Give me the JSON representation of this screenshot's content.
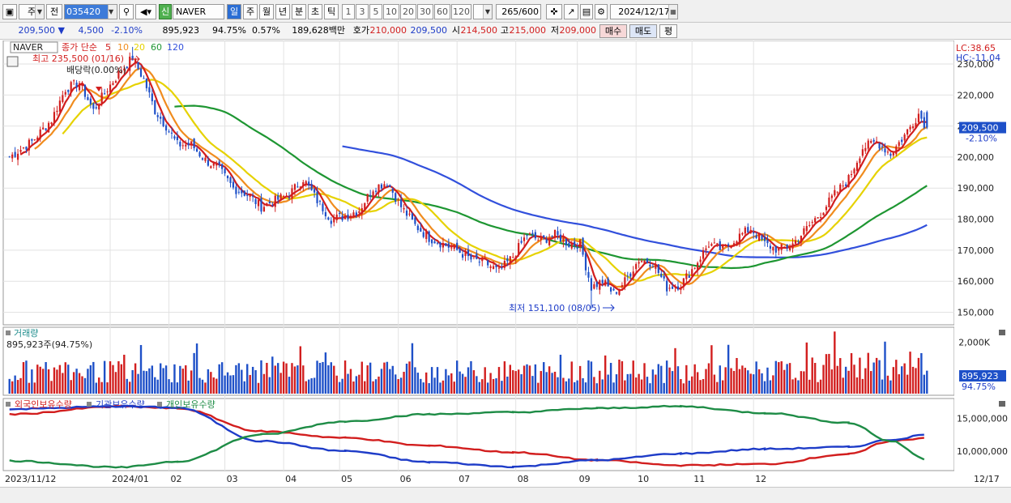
{
  "toolbar": {
    "market_type": "주",
    "all_label": "전",
    "stock_code": "035420",
    "signal_badge": "신",
    "stock_name": "NAVER",
    "periods": [
      "일",
      "주",
      "월",
      "년",
      "분",
      "초",
      "틱"
    ],
    "intervals": [
      "1",
      "3",
      "5",
      "10",
      "20",
      "30",
      "60",
      "120"
    ],
    "count": "265",
    "count_max": "/600",
    "date": "2024/12/17"
  },
  "quote": {
    "price": "209,500",
    "change_arrow": "▼",
    "change": "4,500",
    "change_pct": "-2.10%",
    "volume": "895,923",
    "vol_ratio": "94.75%",
    "turnover": "0.57%",
    "amount": "189,628백만",
    "bid_label": "호가",
    "ask": "210,000",
    "bid": "209,500",
    "open_label": "시",
    "open": "214,500",
    "high_label": "고",
    "high": "215,000",
    "low_label": "저",
    "low": "209,000",
    "buy_button": "매수",
    "sell_button": "매도",
    "eval_button": "평"
  },
  "legend": {
    "name": "NAVER",
    "type": "종가 단순",
    "ma": [
      {
        "label": "5",
        "color": "#d21e1e"
      },
      {
        "label": "10",
        "color": "#f08c1e"
      },
      {
        "label": "20",
        "color": "#e6d200"
      },
      {
        "label": "60",
        "color": "#1e9632"
      },
      {
        "label": "120",
        "color": "#3250dc"
      }
    ]
  },
  "annotations": {
    "high": "최고 235,500 (01/16)",
    "dividend": "배당락(0.00%)",
    "low": "최저 151,100 (08/05)",
    "lc": "LC:38.65",
    "hc": "HC:-11.04",
    "price_tag": "209,500",
    "price_tag_pct": "-2.10%"
  },
  "volume_panel": {
    "title": "거래량",
    "info": "895,923주(94.75%)",
    "axis_label": "2,000K",
    "tag": "895,923",
    "tag_pct": "94.75%"
  },
  "holdings_panel": {
    "legends": [
      {
        "label": "외국인보유수량",
        "color": "#d21e1e"
      },
      {
        "label": "기관보유수량",
        "color": "#1e3cc8"
      },
      {
        "label": "개인보유수량",
        "color": "#1e8c46"
      }
    ],
    "axis_labels": [
      "15,000,000",
      "10,000,000"
    ]
  },
  "colors": {
    "up": "#d21e1e",
    "down": "#1e50c8"
  },
  "chart_data": {
    "type": "candlestick",
    "price_axis": [
      "230,000",
      "220,000",
      "210,000",
      "200,000",
      "190,000",
      "180,000",
      "170,000",
      "160,000",
      "150,000"
    ],
    "ylim": [
      147000,
      236000
    ],
    "x_labels": [
      "2023/11/12",
      "2024/01",
      "02",
      "03",
      "04",
      "05",
      "06",
      "07",
      "08",
      "09",
      "10",
      "11",
      "12",
      "12/17"
    ],
    "close_anchors": [
      [
        0,
        200000
      ],
      [
        8,
        205000
      ],
      [
        15,
        212000
      ],
      [
        20,
        222000
      ],
      [
        25,
        224000
      ],
      [
        30,
        215000
      ],
      [
        35,
        222000
      ],
      [
        40,
        228000
      ],
      [
        44,
        232000
      ],
      [
        48,
        225000
      ],
      [
        52,
        215000
      ],
      [
        56,
        210000
      ],
      [
        60,
        204000
      ],
      [
        65,
        204000
      ],
      [
        70,
        199000
      ],
      [
        75,
        196000
      ],
      [
        80,
        190000
      ],
      [
        85,
        188000
      ],
      [
        90,
        184000
      ],
      [
        95,
        186000
      ],
      [
        100,
        188000
      ],
      [
        105,
        193000
      ],
      [
        110,
        186000
      ],
      [
        115,
        180000
      ],
      [
        120,
        181000
      ],
      [
        125,
        183000
      ],
      [
        130,
        190000
      ],
      [
        135,
        192000
      ],
      [
        140,
        184000
      ],
      [
        145,
        178000
      ],
      [
        150,
        174000
      ],
      [
        155,
        172000
      ],
      [
        160,
        170000
      ],
      [
        165,
        167000
      ],
      [
        170,
        166000
      ],
      [
        175,
        163000
      ],
      [
        180,
        168000
      ],
      [
        185,
        175000
      ],
      [
        190,
        173000
      ],
      [
        195,
        175000
      ],
      [
        200,
        172000
      ],
      [
        204,
        172000
      ],
      [
        208,
        158000
      ],
      [
        212,
        160000
      ],
      [
        216,
        156000
      ],
      [
        220,
        160000
      ],
      [
        225,
        167000
      ],
      [
        230,
        166000
      ],
      [
        235,
        158000
      ],
      [
        240,
        159000
      ],
      [
        245,
        165000
      ],
      [
        250,
        172000
      ],
      [
        255,
        170000
      ],
      [
        260,
        174000
      ],
      [
        265,
        177000
      ],
      [
        270,
        172000
      ],
      [
        275,
        170000
      ],
      [
        280,
        172000
      ],
      [
        285,
        177000
      ],
      [
        290,
        182000
      ],
      [
        295,
        188000
      ],
      [
        300,
        193000
      ],
      [
        305,
        203000
      ],
      [
        310,
        205000
      ],
      [
        315,
        201000
      ],
      [
        320,
        207000
      ],
      [
        325,
        214000
      ],
      [
        328,
        209500
      ]
    ],
    "volume_max_k": 2400,
    "holdings_ylim": [
      7500000,
      17500000
    ]
  }
}
